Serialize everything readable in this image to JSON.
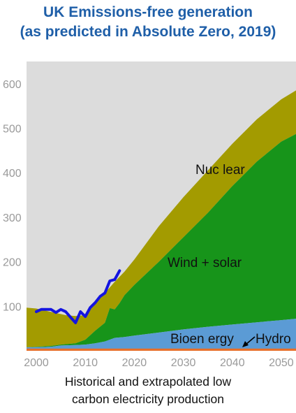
{
  "title_line1": "UK Emissions-free generation",
  "title_line2": "(as predicted in Absolute Zero, 2019)",
  "caption_line1": "Historical and extrapolated low",
  "caption_line2": "carbon electricity production",
  "chart_data": {
    "type": "area",
    "xlim": [
      1998,
      2053
    ],
    "ylim": [
      0,
      650
    ],
    "x_ticks": [
      2000,
      2010,
      2020,
      2030,
      2040,
      2050
    ],
    "y_ticks": [
      100,
      200,
      300,
      400,
      500,
      600
    ],
    "x_tick_labels": [
      "2000",
      "2010",
      "2020",
      "2030",
      "2040",
      "2050"
    ],
    "y_tick_labels": [
      "100",
      "200",
      "300",
      "400",
      "500",
      "600"
    ],
    "grid": false,
    "colors": {
      "background": "#dcdcdc",
      "hydro": "#e8702a",
      "bioenergy": "#5b9bd5",
      "wind_solar": "#17941a",
      "nuclear": "#a39b00",
      "total_line": "#1414e0"
    },
    "series": [
      {
        "name": "Hydro",
        "x": [
          1998,
          2053
        ],
        "values": [
          5,
          5
        ]
      },
      {
        "name": "Bioen ergy",
        "x": [
          1998,
          2000,
          2003,
          2005,
          2008,
          2010,
          2012,
          2014,
          2016,
          2018,
          2020,
          2025,
          2030,
          2035,
          2040,
          2045,
          2050,
          2053
        ],
        "values": [
          8,
          8,
          9,
          12,
          13,
          14,
          17,
          21,
          29,
          31,
          34,
          41,
          48,
          54,
          59,
          64,
          69,
          72
        ]
      },
      {
        "name": "Wind + solar",
        "x": [
          1998,
          2000,
          2003,
          2005,
          2008,
          2010,
          2012,
          2014,
          2015,
          2016,
          2017,
          2018,
          2020,
          2025,
          2030,
          2035,
          2040,
          2045,
          2050,
          2053
        ],
        "values": [
          8,
          9,
          11,
          14,
          17,
          25,
          45,
          63,
          96,
          93,
          107,
          125,
          148,
          200,
          255,
          310,
          370,
          425,
          470,
          487
        ]
      },
      {
        "name": "Nuc lear",
        "x": [
          1998,
          2000,
          2002,
          2004,
          2006,
          2008,
          2010,
          2012,
          2014,
          2016,
          2018,
          2020,
          2025,
          2030,
          2035,
          2040,
          2045,
          2050,
          2053
        ],
        "values": [
          97,
          95,
          90,
          85,
          80,
          78,
          80,
          108,
          130,
          155,
          178,
          205,
          280,
          345,
          405,
          465,
          520,
          565,
          585
        ]
      },
      {
        "name": "Historical total",
        "x": [
          2000,
          2001,
          2003,
          2004,
          2005,
          2006,
          2007,
          2008,
          2009,
          2010,
          2011,
          2012,
          2013,
          2014,
          2015,
          2016,
          2017
        ],
        "values": [
          88,
          93,
          93,
          86,
          93,
          88,
          75,
          63,
          88,
          77,
          97,
          108,
          122,
          130,
          157,
          160,
          180
        ]
      }
    ],
    "annotations": [
      "Nuc lear",
      "Wind + solar",
      "Bioen ergy",
      "Hydro"
    ]
  }
}
